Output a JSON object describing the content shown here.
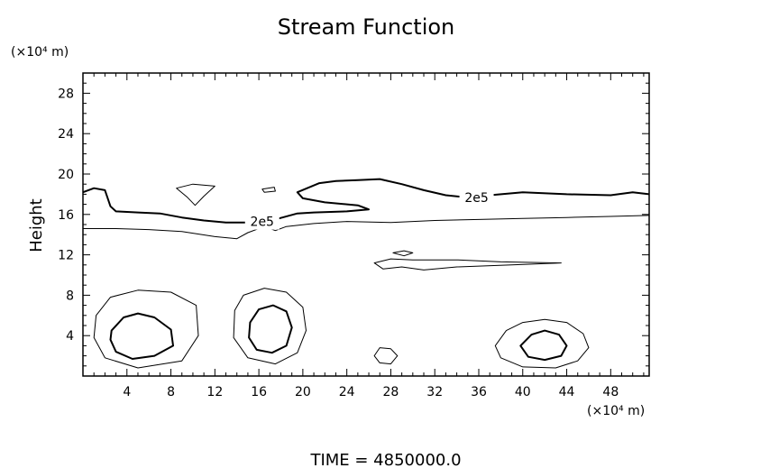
{
  "chart_data": {
    "type": "contour",
    "title": "Stream Function",
    "ylabel": "Height",
    "x_unit": "(×10⁴ m)",
    "y_unit": "(×10⁴ m)",
    "footer": "TIME  =  4850000.0",
    "xlim": [
      0,
      51.5
    ],
    "ylim": [
      0,
      30
    ],
    "x_ticks": [
      4,
      8,
      12,
      16,
      20,
      24,
      28,
      32,
      36,
      40,
      44,
      48
    ],
    "y_ticks": [
      4,
      8,
      12,
      16,
      20,
      24,
      28
    ],
    "contour_labels": [
      {
        "text": "2e5",
        "x": 35.8,
        "y": 17.7
      },
      {
        "text": "2e5",
        "x": 16.3,
        "y": 15.3
      }
    ],
    "contours": [
      {
        "level": "2e5",
        "weight": "bold",
        "closed": false,
        "points": [
          [
            0,
            18.2
          ],
          [
            1,
            18.6
          ],
          [
            2,
            18.4
          ],
          [
            2.5,
            16.8
          ],
          [
            3,
            16.3
          ],
          [
            5,
            16.2
          ],
          [
            7,
            16.1
          ],
          [
            9,
            15.7
          ],
          [
            11,
            15.4
          ],
          [
            13,
            15.2
          ],
          [
            14.8,
            15.2
          ],
          [
            17.8,
            15.6
          ],
          [
            19.5,
            16.1
          ],
          [
            21,
            16.2
          ],
          [
            24,
            16.3
          ],
          [
            26,
            16.5
          ],
          [
            25,
            16.9
          ],
          [
            22,
            17.2
          ],
          [
            20,
            17.6
          ],
          [
            19.5,
            18.2
          ],
          [
            21.5,
            19.1
          ],
          [
            23,
            19.3
          ],
          [
            25,
            19.4
          ],
          [
            27,
            19.5
          ],
          [
            29,
            19.0
          ],
          [
            31,
            18.4
          ],
          [
            33,
            17.9
          ],
          [
            34.9,
            17.7
          ],
          [
            37,
            17.9
          ],
          [
            40,
            18.2
          ],
          [
            44,
            18.0
          ],
          [
            48,
            17.9
          ],
          [
            50,
            18.2
          ],
          [
            51.5,
            18.0
          ]
        ]
      },
      {
        "level": "",
        "weight": "thin",
        "closed": false,
        "points": [
          [
            0,
            14.6
          ],
          [
            3,
            14.6
          ],
          [
            6,
            14.5
          ],
          [
            9,
            14.3
          ],
          [
            12,
            13.8
          ],
          [
            14,
            13.6
          ],
          [
            15,
            14.2
          ],
          [
            16.5,
            14.8
          ],
          [
            17.5,
            14.4
          ],
          [
            18.5,
            14.8
          ],
          [
            21,
            15.1
          ],
          [
            24,
            15.3
          ],
          [
            28,
            15.2
          ],
          [
            32,
            15.4
          ],
          [
            36,
            15.5
          ],
          [
            40,
            15.6
          ],
          [
            44,
            15.7
          ],
          [
            48,
            15.8
          ],
          [
            51.5,
            15.9
          ]
        ]
      },
      {
        "level": "",
        "weight": "thin",
        "closed": true,
        "points": [
          [
            8.5,
            18.6
          ],
          [
            10,
            19.0
          ],
          [
            12,
            18.8
          ],
          [
            11,
            17.8
          ],
          [
            10.2,
            16.9
          ],
          [
            9.5,
            17.7
          ]
        ]
      },
      {
        "level": "",
        "weight": "thin",
        "closed": true,
        "points": [
          [
            16.3,
            18.5
          ],
          [
            17.4,
            18.7
          ],
          [
            17.5,
            18.3
          ],
          [
            16.5,
            18.2
          ]
        ]
      },
      {
        "level": "",
        "weight": "thin",
        "closed": true,
        "points": [
          [
            26.5,
            11.2
          ],
          [
            28,
            11.6
          ],
          [
            30,
            11.5
          ],
          [
            34,
            11.5
          ],
          [
            38,
            11.3
          ],
          [
            43.5,
            11.2
          ],
          [
            39,
            11.0
          ],
          [
            34,
            10.8
          ],
          [
            31,
            10.5
          ],
          [
            29,
            10.8
          ],
          [
            27.3,
            10.6
          ]
        ]
      },
      {
        "level": "",
        "weight": "thin",
        "closed": true,
        "points": [
          [
            28.2,
            12.2
          ],
          [
            29.2,
            12.4
          ],
          [
            30.0,
            12.2
          ],
          [
            29.2,
            11.9
          ]
        ]
      },
      {
        "level": "",
        "weight": "thin",
        "closed": true,
        "points": [
          [
            1.2,
            6.0
          ],
          [
            2.5,
            7.8
          ],
          [
            5,
            8.5
          ],
          [
            8,
            8.3
          ],
          [
            10.3,
            7.0
          ],
          [
            10.5,
            4.0
          ],
          [
            9,
            1.5
          ],
          [
            5,
            0.8
          ],
          [
            2,
            1.8
          ],
          [
            1,
            3.8
          ]
        ]
      },
      {
        "level": "",
        "weight": "bold",
        "closed": true,
        "points": [
          [
            2.6,
            4.5
          ],
          [
            3.7,
            5.8
          ],
          [
            5,
            6.2
          ],
          [
            6.5,
            5.8
          ],
          [
            8,
            4.6
          ],
          [
            8.2,
            3.0
          ],
          [
            6.5,
            2.0
          ],
          [
            4.5,
            1.7
          ],
          [
            3,
            2.4
          ],
          [
            2.5,
            3.6
          ]
        ]
      },
      {
        "level": "",
        "weight": "thin",
        "closed": true,
        "points": [
          [
            13.8,
            6.5
          ],
          [
            14.6,
            8.0
          ],
          [
            16.5,
            8.7
          ],
          [
            18.5,
            8.3
          ],
          [
            20,
            6.8
          ],
          [
            20.3,
            4.5
          ],
          [
            19.5,
            2.3
          ],
          [
            17.5,
            1.2
          ],
          [
            15,
            1.8
          ],
          [
            13.7,
            3.8
          ]
        ]
      },
      {
        "level": "",
        "weight": "bold",
        "closed": true,
        "points": [
          [
            15.2,
            5.3
          ],
          [
            16,
            6.6
          ],
          [
            17.3,
            7.0
          ],
          [
            18.5,
            6.4
          ],
          [
            19.0,
            4.8
          ],
          [
            18.5,
            3.0
          ],
          [
            17.2,
            2.3
          ],
          [
            15.8,
            2.6
          ],
          [
            15.1,
            3.8
          ]
        ]
      },
      {
        "level": "",
        "weight": "thin",
        "closed": true,
        "points": [
          [
            26.5,
            2.0
          ],
          [
            27,
            2.8
          ],
          [
            28,
            2.7
          ],
          [
            28.6,
            2.0
          ],
          [
            28,
            1.2
          ],
          [
            27,
            1.3
          ]
        ]
      },
      {
        "level": "",
        "weight": "thin",
        "closed": true,
        "points": [
          [
            37.5,
            3.0
          ],
          [
            38.5,
            4.5
          ],
          [
            40,
            5.3
          ],
          [
            42,
            5.6
          ],
          [
            44,
            5.3
          ],
          [
            45.5,
            4.2
          ],
          [
            46,
            2.8
          ],
          [
            45,
            1.5
          ],
          [
            43,
            0.8
          ],
          [
            40,
            0.9
          ],
          [
            38,
            1.8
          ]
        ]
      },
      {
        "level": "",
        "weight": "bold",
        "closed": true,
        "points": [
          [
            39.8,
            3.0
          ],
          [
            40.8,
            4.1
          ],
          [
            42,
            4.5
          ],
          [
            43.3,
            4.1
          ],
          [
            44,
            3.0
          ],
          [
            43.5,
            2.0
          ],
          [
            42,
            1.6
          ],
          [
            40.5,
            1.9
          ]
        ]
      }
    ]
  }
}
